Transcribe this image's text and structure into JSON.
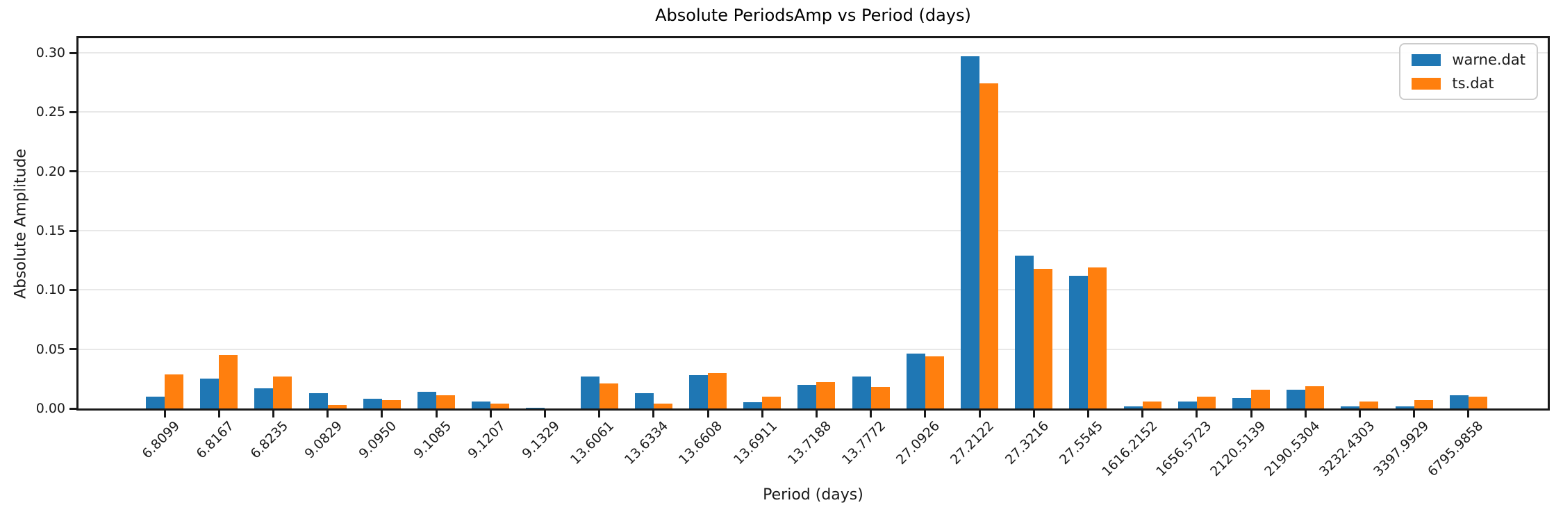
{
  "chart_data": {
    "type": "bar",
    "title": "Absolute PeriodsAmp vs Period (days)",
    "xlabel": "Period (days)",
    "ylabel": "Absolute Amplitude",
    "categories": [
      "6.8099",
      "6.8167",
      "6.8235",
      "9.0829",
      "9.0950",
      "9.1085",
      "9.1207",
      "9.1329",
      "13.6061",
      "13.6334",
      "13.6608",
      "13.6911",
      "13.7188",
      "13.7772",
      "27.0926",
      "27.2122",
      "27.3216",
      "27.5545",
      "1616.2152",
      "1656.5723",
      "2120.5139",
      "2190.5304",
      "3232.4303",
      "3397.9929",
      "6795.9858"
    ],
    "series": [
      {
        "name": "warne.dat",
        "color": "#1f77b4",
        "values": [
          0.01,
          0.025,
          0.017,
          0.013,
          0.008,
          0.014,
          0.006,
          0.0003,
          0.027,
          0.013,
          0.028,
          0.005,
          0.02,
          0.027,
          0.046,
          0.297,
          0.129,
          0.112,
          0.002,
          0.006,
          0.009,
          0.016,
          0.002,
          0.002,
          0.011
        ]
      },
      {
        "name": "ts.dat",
        "color": "#ff7f0e",
        "values": [
          0.029,
          0.045,
          0.027,
          0.003,
          0.007,
          0.011,
          0.004,
          0.0002,
          0.021,
          0.004,
          0.03,
          0.01,
          0.022,
          0.018,
          0.044,
          0.274,
          0.118,
          0.119,
          0.006,
          0.01,
          0.016,
          0.019,
          0.006,
          0.007,
          0.01
        ]
      }
    ],
    "ylim": [
      0,
      0.3123
    ],
    "ytick_values": [
      0,
      0.05,
      0.1,
      0.15,
      0.2,
      0.25,
      0.3
    ],
    "ytick_labels": [
      "0.00",
      "0.05",
      "0.10",
      "0.15",
      "0.20",
      "0.25",
      "0.30"
    ],
    "grid": true,
    "legend_position": "upper right",
    "colors": {
      "background": "#ffffff",
      "grid": "#e8e8e8",
      "spine": "#1a1a1a",
      "text": "#1a1a1a"
    }
  }
}
